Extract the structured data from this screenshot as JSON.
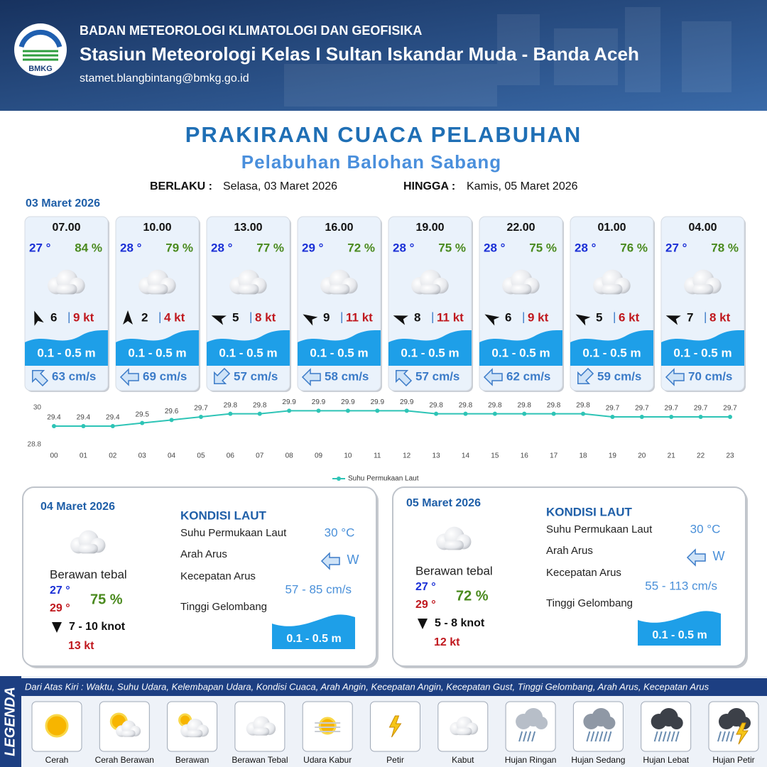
{
  "header": {
    "logo": "BMKG",
    "agency": "BADAN METEOROLOGI KLIMATOLOGI DAN GEOFISIKA",
    "station": "Stasiun Meteorologi Kelas I Sultan Iskandar Muda - Banda Aceh",
    "email": "stamet.blangbintang@bmkg.go.id"
  },
  "title": "PRAKIRAAN CUACA PELABUHAN",
  "subtitle": "Pelabuhan Balohan Sabang",
  "validity": {
    "from_label": "BERLAKU :",
    "from": "Selasa, 03 Maret 2026",
    "to_label": "HINGGA :",
    "to": "Kamis, 05 Maret 2026"
  },
  "day1": {
    "date": "03 Maret 2026",
    "forecasts": [
      {
        "time": "07.00",
        "temp": "27 °",
        "humidity": "84 %",
        "wind": "6",
        "gust": "9 kt",
        "wave": "0.1 - 0.5 m",
        "current": "63 cm/s"
      },
      {
        "time": "10.00",
        "temp": "28 °",
        "humidity": "79 %",
        "wind": "2",
        "gust": "4 kt",
        "wave": "0.1 - 0.5 m",
        "current": "69 cm/s"
      },
      {
        "time": "13.00",
        "temp": "28 °",
        "humidity": "77 %",
        "wind": "5",
        "gust": "8 kt",
        "wave": "0.1 - 0.5 m",
        "current": "57 cm/s"
      },
      {
        "time": "16.00",
        "temp": "29 °",
        "humidity": "72 %",
        "wind": "9",
        "gust": "11 kt",
        "wave": "0.1 - 0.5 m",
        "current": "58 cm/s"
      },
      {
        "time": "19.00",
        "temp": "28 °",
        "humidity": "75 %",
        "wind": "8",
        "gust": "11 kt",
        "wave": "0.1 - 0.5 m",
        "current": "57 cm/s"
      },
      {
        "time": "22.00",
        "temp": "28 °",
        "humidity": "75 %",
        "wind": "6",
        "gust": "9 kt",
        "wave": "0.1 - 0.5 m",
        "current": "62 cm/s"
      },
      {
        "time": "01.00",
        "temp": "28 °",
        "humidity": "76 %",
        "wind": "5",
        "gust": "6 kt",
        "wave": "0.1 - 0.5 m",
        "current": "59 cm/s"
      },
      {
        "time": "04.00",
        "temp": "27 °",
        "humidity": "78 %",
        "wind": "7",
        "gust": "8 kt",
        "wave": "0.1 - 0.5 m",
        "current": "70 cm/s"
      }
    ]
  },
  "chart_data": {
    "type": "line",
    "categories": [
      "00",
      "01",
      "02",
      "03",
      "04",
      "05",
      "06",
      "07",
      "08",
      "09",
      "10",
      "11",
      "12",
      "13",
      "14",
      "15",
      "16",
      "17",
      "18",
      "19",
      "20",
      "21",
      "22",
      "23"
    ],
    "series": [
      {
        "name": "Suhu Permukaan Laut",
        "color": "#2ec4b6",
        "values": [
          29.4,
          29.4,
          29.4,
          29.5,
          29.6,
          29.7,
          29.8,
          29.8,
          29.9,
          29.9,
          29.9,
          29.9,
          29.9,
          29.8,
          29.8,
          29.8,
          29.8,
          29.8,
          29.8,
          29.7,
          29.7,
          29.7,
          29.7,
          29.7
        ]
      }
    ],
    "ylim": [
      28.8,
      30
    ],
    "yticks": [
      28.8,
      30
    ],
    "grid": false
  },
  "days": [
    {
      "date": "04 Maret 2026",
      "condition": "Berawan tebal",
      "temp_min": "27 °",
      "temp_max": "29 °",
      "humidity": "75 %",
      "wind": "7  - 10 knot",
      "gust": "13 kt",
      "sea_heading": "KONDISI LAUT",
      "sea_labels": [
        "Suhu Permukaan Laut",
        "Arah Arus",
        "Kecepatan Arus",
        "Tinggi Gelombang"
      ],
      "sst": "30 °C",
      "current_dir": "W",
      "current_speed": "57  - 85 cm/s",
      "wave": "0.1 - 0.5 m"
    },
    {
      "date": "05 Maret 2026",
      "condition": "Berawan tebal",
      "temp_min": "27 °",
      "temp_max": "29 °",
      "humidity": "72 %",
      "wind": "5  - 8 knot",
      "gust": "12 kt",
      "sea_heading": "KONDISI LAUT",
      "sea_labels": [
        "Suhu Permukaan Laut",
        "Arah Arus",
        "Kecepatan Arus",
        "Tinggi Gelombang"
      ],
      "sst": "30 °C",
      "current_dir": "W",
      "current_speed": "55  - 113 cm/s",
      "wave": "0.1 - 0.5 m"
    }
  ],
  "legend": {
    "title": "LEGENDA",
    "note": "Dari Atas Kiri : Waktu, Suhu Udara, Kelembapan Udara, Kondisi Cuaca, Arah Angin, Kecepatan Angin, Kecepatan Gust, Tinggi Gelombang, Arah Arus, Kecepatan Arus",
    "items": [
      "Cerah",
      "Cerah Berawan",
      "Berawan",
      "Berawan Tebal",
      "Udara Kabur",
      "Petir",
      "Kabut",
      "Hujan Ringan",
      "Hujan Sedang",
      "Hujan Lebat",
      "Hujan Petir"
    ]
  }
}
